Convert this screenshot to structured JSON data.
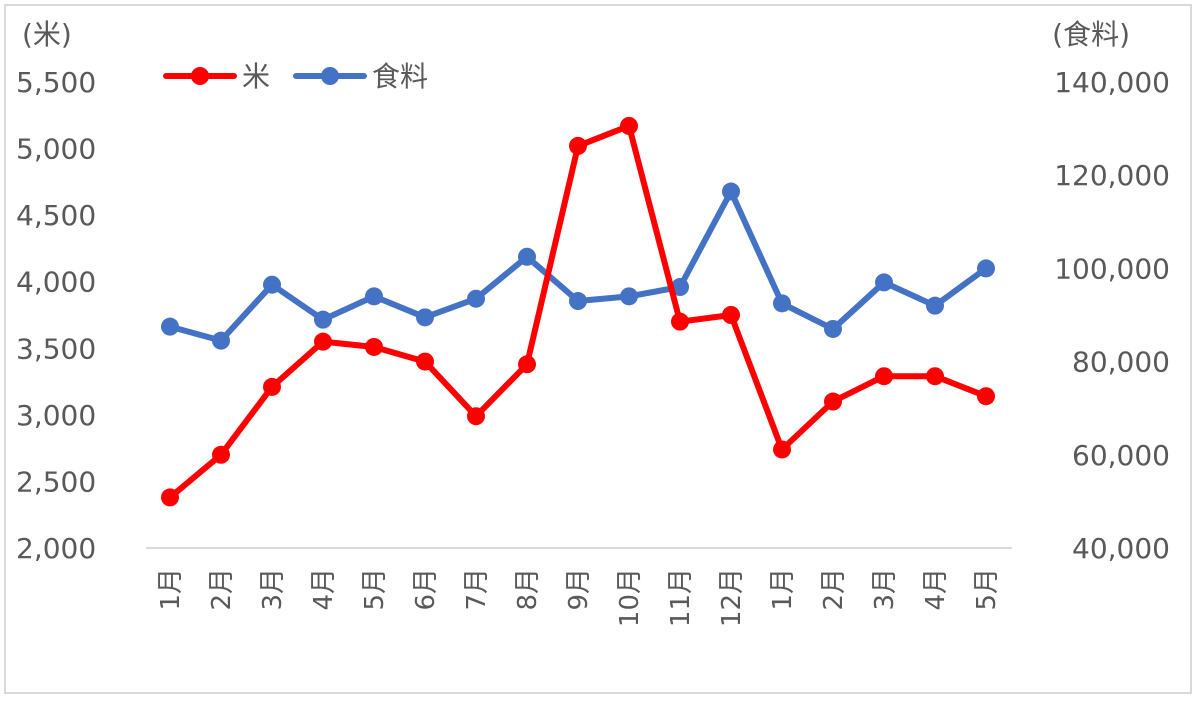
{
  "chart_data": {
    "type": "line",
    "categories": [
      "1月",
      "2月",
      "3月",
      "4月",
      "5月",
      "6月",
      "7月",
      "8月",
      "9月",
      "10月",
      "11月",
      "12月",
      "1月",
      "2月",
      "3月",
      "4月",
      "5月"
    ],
    "series": [
      {
        "name": "米",
        "axis": "left",
        "color": "#ff0000",
        "values": [
          2380,
          2700,
          3210,
          3550,
          3510,
          3400,
          2990,
          3380,
          5020,
          5170,
          3700,
          3750,
          2740,
          3100,
          3290,
          3290,
          3140
        ]
      },
      {
        "name": "食料",
        "axis": "right",
        "color": "#4472c4",
        "values": [
          87500,
          84500,
          96500,
          89000,
          94000,
          89500,
          93500,
          102500,
          93000,
          94000,
          96000,
          116500,
          92500,
          87000,
          97000,
          92000,
          100000
        ]
      }
    ],
    "left_axis": {
      "unit_label": "(米)",
      "ylim": [
        2000,
        5500
      ],
      "ticks": [
        "2,000",
        "2,500",
        "3,000",
        "3,500",
        "4,000",
        "4,500",
        "5,000",
        "5,500"
      ]
    },
    "right_axis": {
      "unit_label": "(食料)",
      "ylim": [
        40000,
        140000
      ],
      "ticks": [
        "40,000",
        "60,000",
        "80,000",
        "100,000",
        "120,000",
        "140,000"
      ]
    },
    "legend": {
      "position": "top-left"
    },
    "grid": false
  }
}
